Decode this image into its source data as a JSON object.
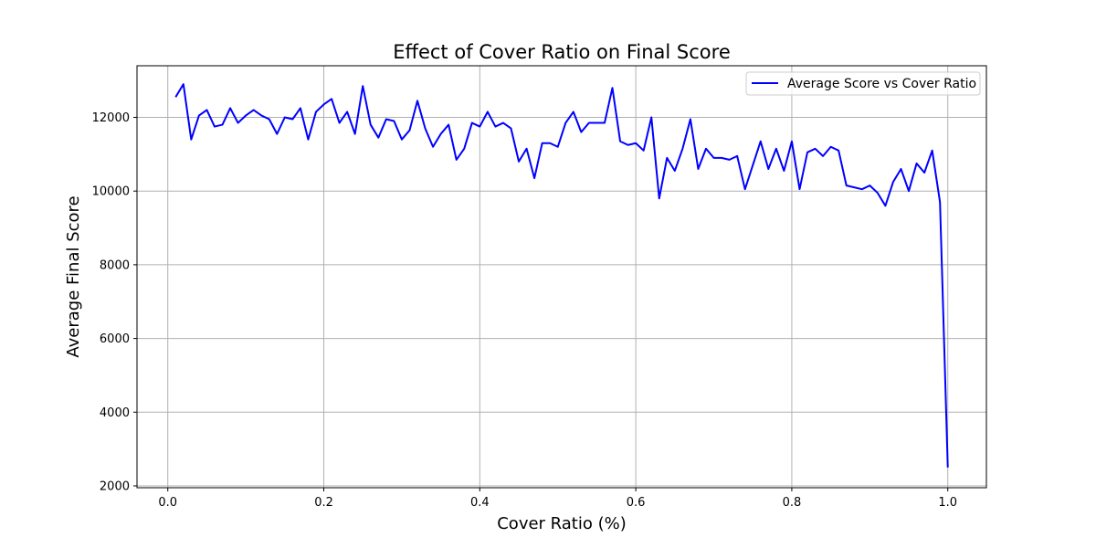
{
  "chart_data": {
    "type": "line",
    "title": "Effect of Cover Ratio on Final Score",
    "xlabel": "Cover Ratio (%)",
    "ylabel": "Average Final Score",
    "xlim": [
      -0.0395,
      1.0495
    ],
    "ylim": [
      1950,
      13400
    ],
    "xticks": [
      0.0,
      0.2,
      0.4,
      0.6,
      0.8,
      1.0
    ],
    "xtick_labels": [
      "0.0",
      "0.2",
      "0.4",
      "0.6",
      "0.8",
      "1.0"
    ],
    "yticks": [
      2000,
      4000,
      6000,
      8000,
      10000,
      12000
    ],
    "ytick_labels": [
      "2000",
      "4000",
      "6000",
      "8000",
      "10000",
      "12000"
    ],
    "grid": true,
    "legend_position": "top-right",
    "series": [
      {
        "name": "Average Score vs Cover Ratio",
        "color": "#0000ff",
        "x": [
          0.01,
          0.02,
          0.03,
          0.04,
          0.05,
          0.06,
          0.07,
          0.08,
          0.09,
          0.1,
          0.11,
          0.12,
          0.13,
          0.14,
          0.15,
          0.16,
          0.17,
          0.18,
          0.19,
          0.2,
          0.21,
          0.22,
          0.23,
          0.24,
          0.25,
          0.26,
          0.27,
          0.28,
          0.29,
          0.3,
          0.31,
          0.32,
          0.33,
          0.34,
          0.35,
          0.36,
          0.37,
          0.38,
          0.39,
          0.4,
          0.41,
          0.42,
          0.43,
          0.44,
          0.45,
          0.46,
          0.47,
          0.48,
          0.49,
          0.5,
          0.51,
          0.52,
          0.53,
          0.54,
          0.55,
          0.56,
          0.57,
          0.58,
          0.59,
          0.6,
          0.61,
          0.62,
          0.63,
          0.64,
          0.65,
          0.66,
          0.67,
          0.68,
          0.69,
          0.7,
          0.71,
          0.72,
          0.73,
          0.74,
          0.75,
          0.76,
          0.77,
          0.78,
          0.79,
          0.8,
          0.81,
          0.82,
          0.83,
          0.84,
          0.85,
          0.86,
          0.87,
          0.88,
          0.89,
          0.9,
          0.91,
          0.92,
          0.93,
          0.94,
          0.95,
          0.96,
          0.97,
          0.98,
          0.99,
          1.0
        ],
        "values": [
          12550,
          12900,
          11400,
          12050,
          12200,
          11750,
          11800,
          12250,
          11850,
          12050,
          12200,
          12050,
          11950,
          11550,
          12000,
          11950,
          12250,
          11400,
          12150,
          12350,
          12500,
          11850,
          12150,
          11550,
          12850,
          11800,
          11450,
          11950,
          11900,
          11400,
          11650,
          12450,
          11700,
          11200,
          11550,
          11800,
          10850,
          11150,
          11850,
          11750,
          12150,
          11750,
          11850,
          11700,
          10800,
          11150,
          10350,
          11300,
          11300,
          11200,
          11850,
          12150,
          11600,
          11850,
          11850,
          11850,
          12800,
          11350,
          11250,
          11300,
          11100,
          12000,
          9800,
          10900,
          10550,
          11150,
          11950,
          10600,
          11150,
          10900,
          10900,
          10850,
          10950,
          10050,
          10700,
          11350,
          10600,
          11150,
          10550,
          11350,
          10050,
          11050,
          11150,
          10950,
          11200,
          11100,
          10150,
          10100,
          10050,
          10150,
          9950,
          9600,
          10250,
          10600,
          10000,
          10750,
          10500,
          11100,
          9700,
          2500
        ]
      }
    ]
  }
}
